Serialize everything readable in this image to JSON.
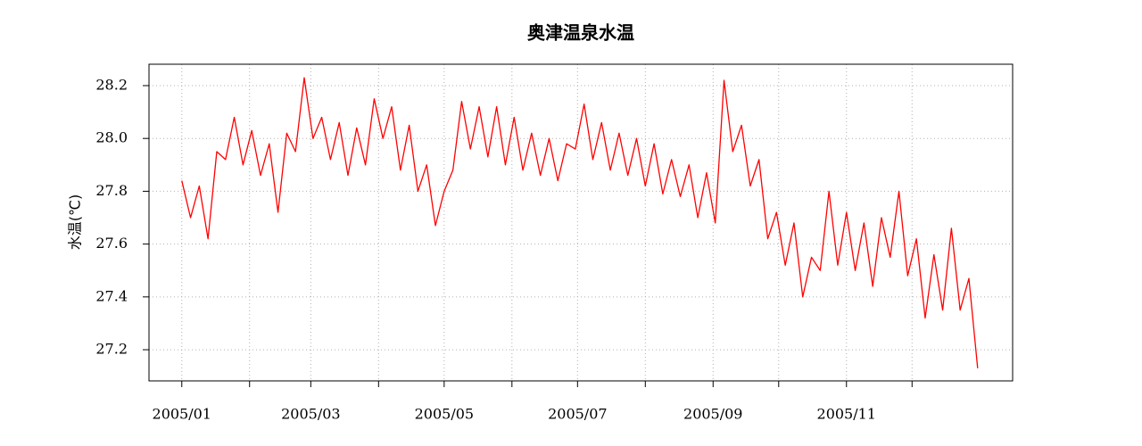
{
  "chart_data": {
    "type": "line",
    "title": "奥津温泉水温",
    "ylabel": "水温(℃)",
    "x": [
      0,
      4,
      8,
      12,
      16,
      20,
      24,
      28,
      32,
      36,
      40,
      44,
      48,
      52,
      56,
      60,
      64,
      68,
      72,
      76,
      80,
      84,
      88,
      92,
      96,
      100,
      104,
      108,
      112,
      116,
      120,
      124,
      128,
      132,
      136,
      140,
      144,
      148,
      152,
      156,
      160,
      164,
      168,
      172,
      176,
      180,
      184,
      188,
      192,
      196,
      200,
      204,
      208,
      212,
      216,
      220,
      224,
      228,
      232,
      236,
      240,
      244,
      248,
      252,
      256,
      260,
      264,
      268,
      272,
      276,
      280,
      284,
      288,
      292,
      296,
      300,
      304,
      308,
      312,
      316,
      320,
      324,
      328,
      332,
      336,
      340,
      344,
      348,
      352,
      356,
      360,
      364
    ],
    "series": [
      {
        "color": "#ff0000",
        "values": [
          27.84,
          27.7,
          27.82,
          27.62,
          27.95,
          27.92,
          28.08,
          27.9,
          28.03,
          27.86,
          27.98,
          27.72,
          28.02,
          27.95,
          28.23,
          28.0,
          28.08,
          27.92,
          28.06,
          27.86,
          28.04,
          27.9,
          28.15,
          28.0,
          28.12,
          27.88,
          28.05,
          27.8,
          27.9,
          27.67,
          27.8,
          27.88,
          28.14,
          27.96,
          28.12,
          27.93,
          28.12,
          27.9,
          28.08,
          27.88,
          28.02,
          27.86,
          28.0,
          27.84,
          27.98,
          27.96,
          28.13,
          27.92,
          28.06,
          27.88,
          28.02,
          27.86,
          28.0,
          27.82,
          27.98,
          27.79,
          27.92,
          27.78,
          27.9,
          27.7,
          27.87,
          27.68,
          28.22,
          27.95,
          28.05,
          27.82,
          27.92,
          27.62,
          27.72,
          27.52,
          27.68,
          27.4,
          27.55,
          27.5,
          27.8,
          27.52,
          27.72,
          27.5,
          27.68,
          27.44,
          27.7,
          27.55,
          27.8,
          27.48,
          27.62,
          27.32,
          27.56,
          27.35,
          27.66,
          27.35,
          27.47,
          27.13
        ]
      }
    ],
    "xlim": [
      -15,
      380
    ],
    "xticks": [
      {
        "value": 0,
        "label": "2005/01"
      },
      {
        "value": 59,
        "label": "2005/03"
      },
      {
        "value": 120,
        "label": "2005/05"
      },
      {
        "value": 181,
        "label": "2005/07"
      },
      {
        "value": 243,
        "label": "2005/09"
      },
      {
        "value": 304,
        "label": "2005/11"
      }
    ],
    "xminorticks": [
      31,
      90,
      151,
      212,
      273,
      334
    ],
    "ylim": [
      27.082,
      28.281
    ],
    "yticks": [
      27.2,
      27.4,
      27.6,
      27.8,
      {
        "value": 28,
        "label": "28.0"
      },
      28.2
    ],
    "grid": true
  }
}
